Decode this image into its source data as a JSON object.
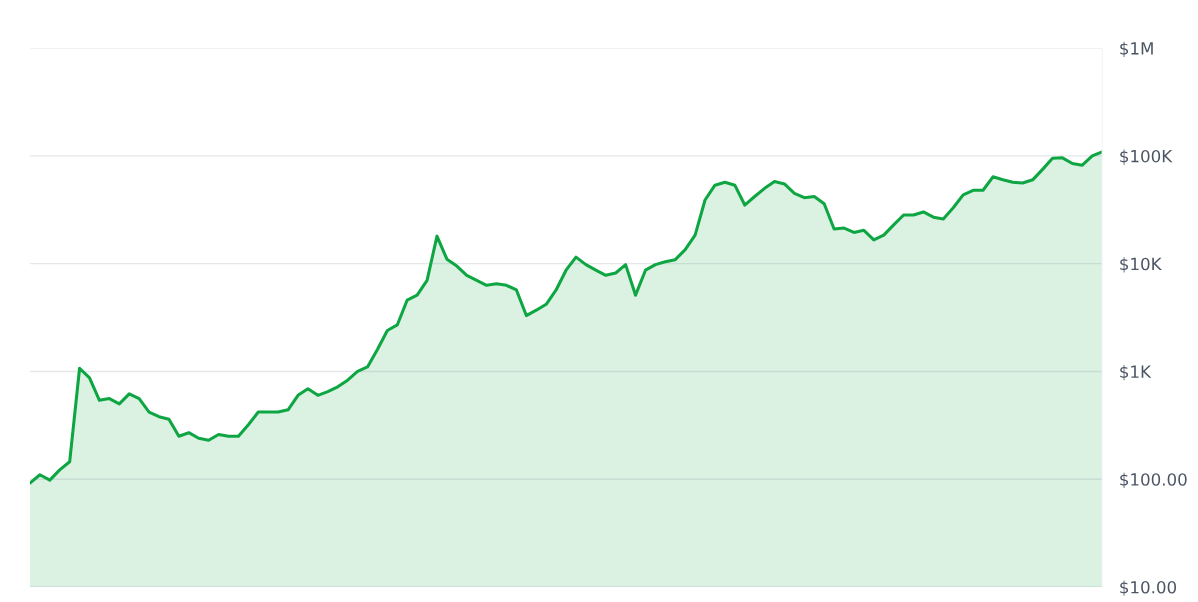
{
  "chart_data": {
    "type": "area",
    "log": "y",
    "grid": "y",
    "tick_labels": "y",
    "ylim": [
      10,
      1000000
    ],
    "yticks": [
      {
        "value": 10,
        "label": "$10.00"
      },
      {
        "value": 100,
        "label": "$100.00"
      },
      {
        "value": 1000,
        "label": "$1K"
      },
      {
        "value": 10000,
        "label": "$10K"
      },
      {
        "value": 100000,
        "label": "$100K"
      },
      {
        "value": 1000000,
        "label": "$1M"
      }
    ],
    "categories": [
      null,
      null,
      null,
      null,
      null,
      null,
      null,
      null,
      null,
      null,
      null,
      null,
      null,
      null,
      null,
      null,
      null,
      null,
      null,
      null,
      null,
      null,
      null,
      null,
      null,
      null,
      null,
      null,
      null,
      null,
      null,
      null,
      null,
      null,
      null,
      null,
      null,
      null,
      null,
      null,
      null,
      null,
      null,
      null,
      null,
      null,
      null,
      null,
      null,
      null,
      null,
      null,
      null,
      null,
      null,
      null,
      null,
      null,
      null,
      null,
      null,
      null,
      null,
      null,
      null,
      null,
      null,
      null,
      null,
      null,
      null,
      null,
      null,
      null,
      null,
      null,
      null,
      null,
      null,
      null,
      null,
      null,
      null,
      null,
      null,
      null,
      null,
      null,
      null,
      null,
      null,
      null,
      null,
      null,
      null,
      null,
      null,
      null,
      null,
      null,
      null,
      null,
      null,
      null,
      null,
      null,
      null,
      null,
      null
    ],
    "series": [
      {
        "color": "#0ea643",
        "values": [
          92,
          110,
          98,
          122,
          145,
          1070,
          870,
          540,
          560,
          500,
          620,
          560,
          420,
          380,
          360,
          250,
          270,
          240,
          230,
          260,
          250,
          250,
          320,
          420,
          420,
          420,
          440,
          600,
          690,
          600,
          650,
          720,
          830,
          1000,
          1100,
          1600,
          2400,
          2700,
          4600,
          5100,
          7000,
          18000,
          11000,
          9500,
          7800,
          7000,
          6300,
          6500,
          6300,
          5700,
          3300,
          3700,
          4200,
          5700,
          8700,
          11500,
          9800,
          8700,
          7800,
          8200,
          9800,
          5100,
          8700,
          9800,
          10400,
          10900,
          13500,
          18400,
          39000,
          53500,
          57000,
          53500,
          35000,
          42000,
          50000,
          58000,
          55000,
          45000,
          41000,
          42000,
          36000,
          21000,
          21400,
          19500,
          20400,
          16600,
          18400,
          22900,
          28300,
          28300,
          30200,
          27000,
          26000,
          33000,
          43500,
          48000,
          48000,
          64000,
          60000,
          57000,
          56000,
          60000,
          75000,
          95000,
          96000,
          85000,
          82000,
          100000,
          109000
        ]
      }
    ]
  }
}
